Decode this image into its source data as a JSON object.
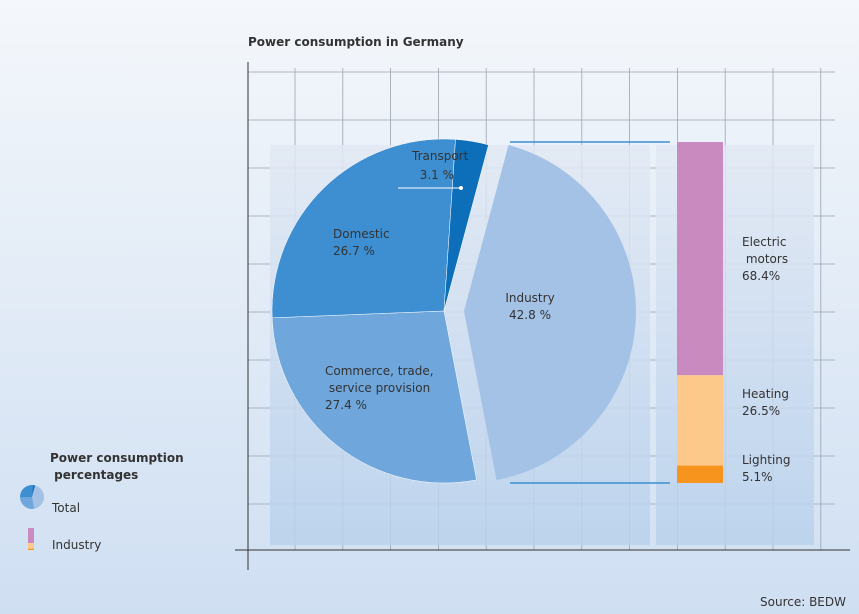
{
  "chart_data": [
    {
      "type": "pie",
      "title": "Power consumption in Germany",
      "categories": [
        "Industry",
        "Commerce, trade, service provision",
        "Domestic",
        "Transport"
      ],
      "values": [
        42.8,
        27.4,
        26.7,
        3.1
      ],
      "value_labels": [
        "42.8 %",
        "27.4 %",
        "26.7 %",
        "3.1 %"
      ],
      "colors": [
        "#a3c2e6",
        "#6fa6dc",
        "#3d8fd1",
        "#0d6fba"
      ]
    },
    {
      "type": "stacked_bar",
      "categories": [
        "Electric motors",
        "Heating",
        "Lighting"
      ],
      "values": [
        68.4,
        26.5,
        5.1
      ],
      "value_labels": [
        "68.4%",
        "26.5%",
        "5.1%"
      ],
      "colors": [
        "#c98bbf",
        "#fdc98a",
        "#f7941d"
      ]
    }
  ],
  "legend": {
    "title": "Power consumption percentages",
    "items": [
      "Total",
      "Industry"
    ]
  },
  "source": "Source: BEDW"
}
